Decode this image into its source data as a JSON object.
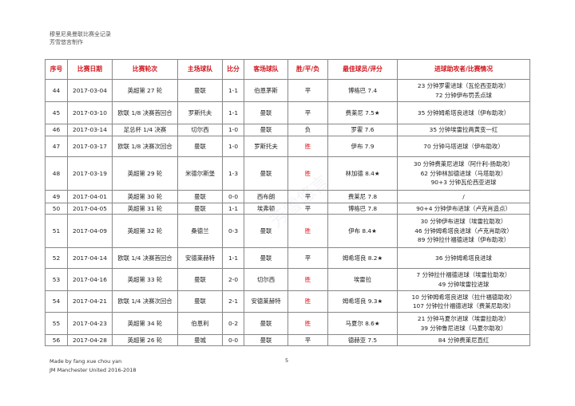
{
  "header": {
    "line1": "穆里尼奥曼联比赛全记录",
    "line2": "芳雪悠言制作"
  },
  "table": {
    "columns": [
      "序号",
      "比赛日期",
      "比赛轮次",
      "主场球队",
      "比分",
      "客场球队",
      "胜/平/负",
      "最佳球员/评分",
      "进球助攻者/比赛情况"
    ],
    "rows": [
      {
        "no": "44",
        "date": "2017-03-04",
        "round": "英超第 27 轮",
        "home": "曼联",
        "score": "1-1",
        "away": "伯恩茅斯",
        "result": "平",
        "best": "博格巴 7.4",
        "events": [
          "23 分钟罗霍进球（瓦伦西亚助攻）",
          "72 分钟伊布罚丢点球"
        ]
      },
      {
        "no": "45",
        "date": "2017-03-10",
        "round": "欧联 1/8 决赛首回合",
        "home": "罗斯托夫",
        "score": "1-1",
        "away": "曼联",
        "result": "平",
        "best": "费莱尼 7.5★",
        "events": [
          "35 分钟姆希塔良进球（伊布助攻）"
        ]
      },
      {
        "no": "46",
        "date": "2017-03-14",
        "round": "足总杯 1/4 决赛",
        "home": "切尔西",
        "score": "1-0",
        "away": "曼联",
        "result": "负",
        "best": "罗霍 7.6",
        "events": [
          "35 分钟埃雷拉两黄变一红"
        ]
      },
      {
        "no": "47",
        "date": "2017-03-17",
        "round": "欧联 1/8 决赛次回合",
        "home": "曼联",
        "score": "1-0",
        "away": "罗斯托夫",
        "result": "胜",
        "best": "伊布 7.9",
        "events": [
          "70 分钟马塔进球（伊布助攻）"
        ]
      },
      {
        "no": "48",
        "date": "2017-03-19",
        "round": "英超第 29 轮",
        "home": "米德尔斯堡",
        "score": "1-3",
        "away": "曼联",
        "result": "胜",
        "best": "林加德 8.4★",
        "events": [
          "30 分钟费莱尼进球（阿什利-扬助攻）",
          "62 分钟林加德进球（马塔助攻）",
          "90+3 分钟瓦伦西亚进球"
        ]
      },
      {
        "no": "49",
        "date": "2017-04-01",
        "round": "英超第 30 轮",
        "home": "曼联",
        "score": "0-0",
        "away": "西布朗",
        "result": "平",
        "best": "费莱尼 7.8",
        "events": [
          "/"
        ]
      },
      {
        "no": "50",
        "date": "2017-04-05",
        "round": "英超第 31 轮",
        "home": "曼联",
        "score": "1-1",
        "away": "埃弗顿",
        "result": "平",
        "best": "博格巴 7.8",
        "events": [
          "90+4 分钟伊布进球（卢克肖造点）"
        ]
      },
      {
        "no": "51",
        "date": "2017-04-09",
        "round": "英超第 32 轮",
        "home": "桑德兰",
        "score": "0-3",
        "away": "曼联",
        "result": "胜",
        "best": "伊布 8.4★",
        "events": [
          "30 分钟伊布进球（埃雷拉助攻）",
          "46 分钟姆希塔良进球（卢克肖助攻）",
          "89 分钟拉什福德进球（伊布助攻）"
        ]
      },
      {
        "no": "52",
        "date": "2017-04-14",
        "round": "欧联 1/4 决赛首回合",
        "home": "安德莱赫特",
        "score": "1-1",
        "away": "曼联",
        "result": "平",
        "best": "姆希塔良 8.2★",
        "events": [
          "36 分钟姆希塔良进球"
        ]
      },
      {
        "no": "53",
        "date": "2017-04-16",
        "round": "英超第 33 轮",
        "home": "曼联",
        "score": "2-0",
        "away": "切尔西",
        "result": "胜",
        "best": "埃雷拉",
        "events": [
          "7 分钟拉什福德进球（埃雷拉助攻）",
          "49 分钟埃雷拉进球"
        ]
      },
      {
        "no": "54",
        "date": "2017-04-21",
        "round": "欧联 1/4 决赛次回合",
        "home": "曼联",
        "score": "2-1",
        "away": "安德莱赫特",
        "result": "胜",
        "best": "姆希塔良 9.3★",
        "events": [
          "10 分钟姆希塔良进球（拉什福德助攻）",
          "107 分钟拉什福德进球（费莱尼助攻）"
        ]
      },
      {
        "no": "55",
        "date": "2017-04-23",
        "round": "英超第 34 轮",
        "home": "伯恩利",
        "score": "0-2",
        "away": "曼联",
        "result": "胜",
        "best": "马夏尔 8.6★",
        "events": [
          "21 分钟马夏尔进球（埃雷拉助攻）",
          "39 分钟鲁尼进球（马夏尔助攻）"
        ]
      },
      {
        "no": "56",
        "date": "2017-04-28",
        "round": "英超第 26 轮",
        "home": "曼城",
        "score": "0-0",
        "away": "曼联",
        "result": "平",
        "best": "德赫亚 7.5",
        "events": [
          "84 分钟费莱尼直红"
        ]
      }
    ]
  },
  "footer": {
    "line1": "Made by fang xue chou yan",
    "line2": "JM Manchester United 2016-2018",
    "page": "5"
  },
  "colors": {
    "header_text": "#d0141c",
    "win": "#e0141c"
  }
}
